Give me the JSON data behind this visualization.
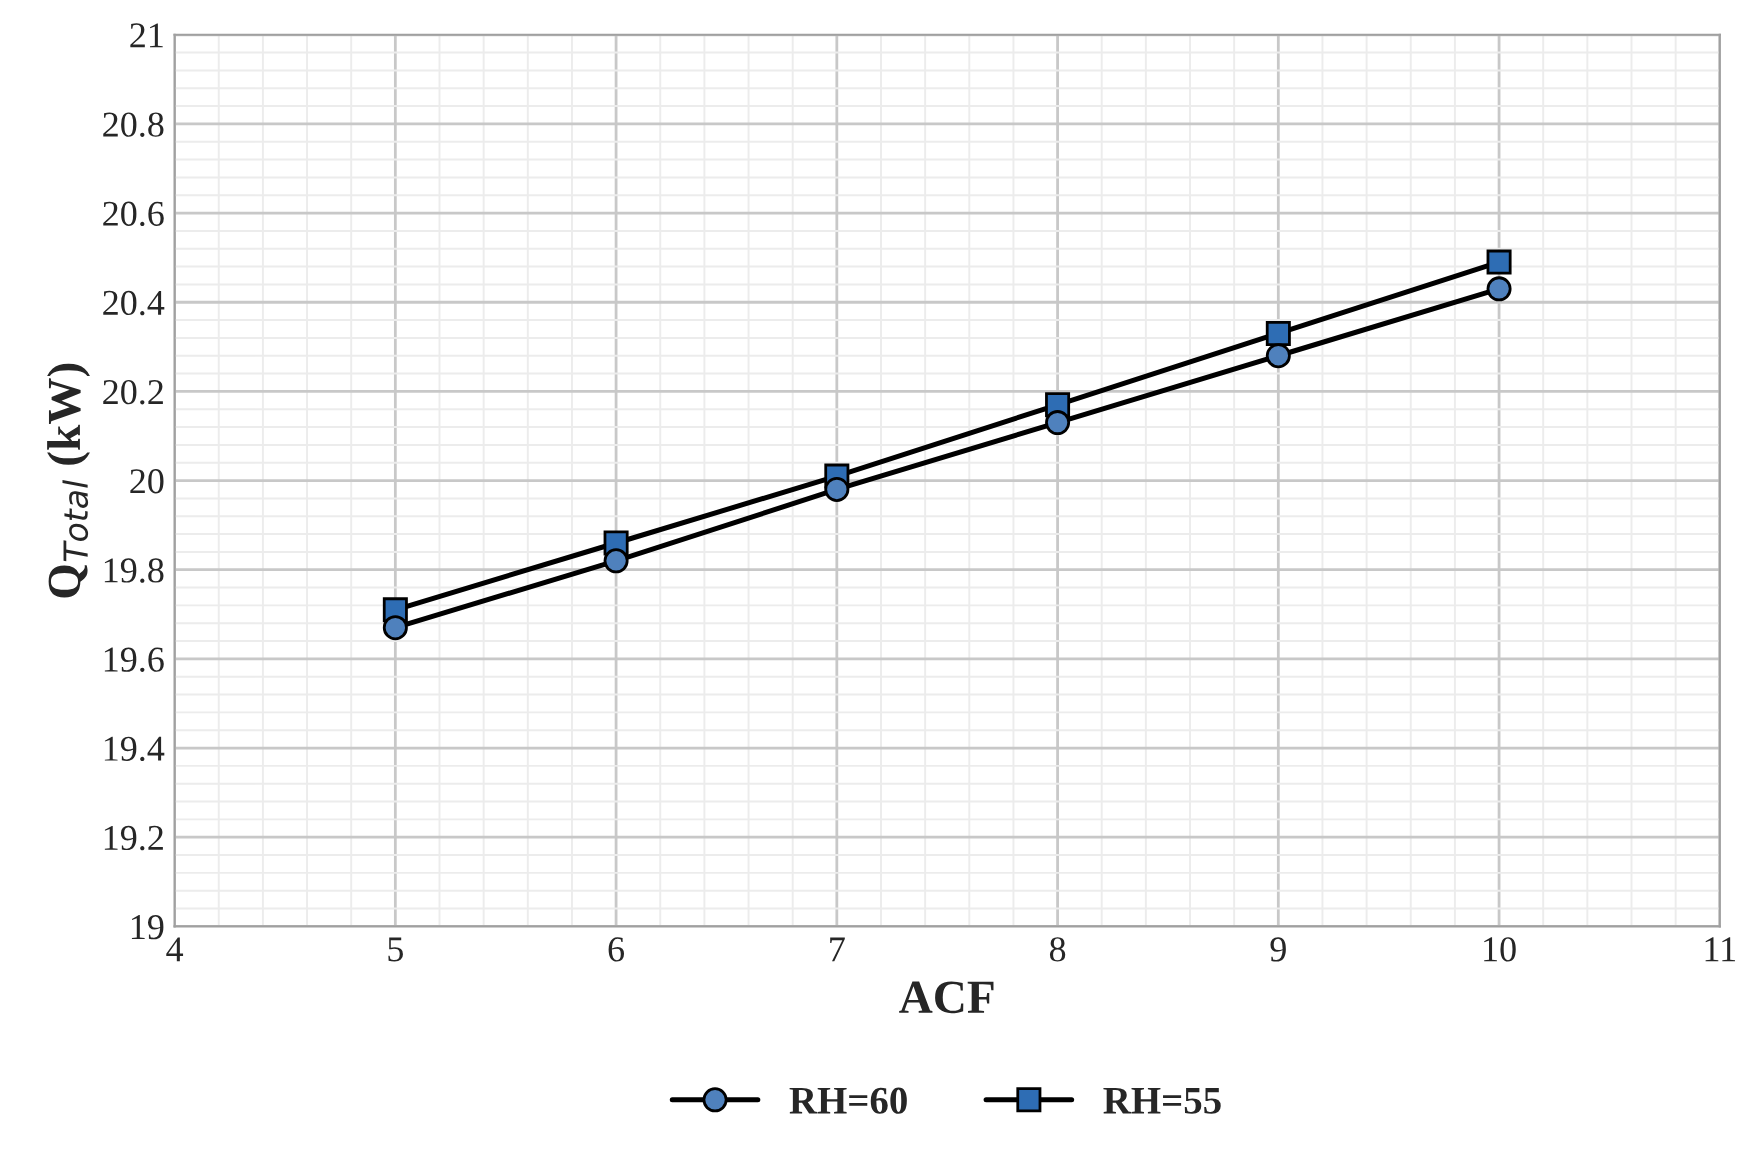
{
  "chart_data": {
    "type": "line",
    "xlabel": "ACF",
    "ylabel": "Q$_{Total}$ (kW)",
    "x": [
      5,
      6,
      7,
      8,
      9,
      10
    ],
    "series": [
      {
        "name": "RH=60",
        "color": "#4f81bd",
        "marker": "circle",
        "values": [
          19.67,
          19.82,
          19.98,
          20.13,
          20.28,
          20.43
        ]
      },
      {
        "name": "RH=55",
        "color": "#2e6db4",
        "marker": "square",
        "values": [
          19.71,
          19.86,
          20.01,
          20.17,
          20.33,
          20.49
        ]
      }
    ],
    "xlim": [
      4,
      11
    ],
    "xticks": [
      4,
      5,
      6,
      7,
      8,
      9,
      10,
      11
    ],
    "ylim": [
      19,
      21
    ],
    "yticks": [
      19,
      19.2,
      19.4,
      19.6,
      19.8,
      20,
      20.2,
      20.4,
      20.6,
      20.8,
      21
    ],
    "grid": true,
    "legend": "bottom",
    "line_style": "solid"
  }
}
